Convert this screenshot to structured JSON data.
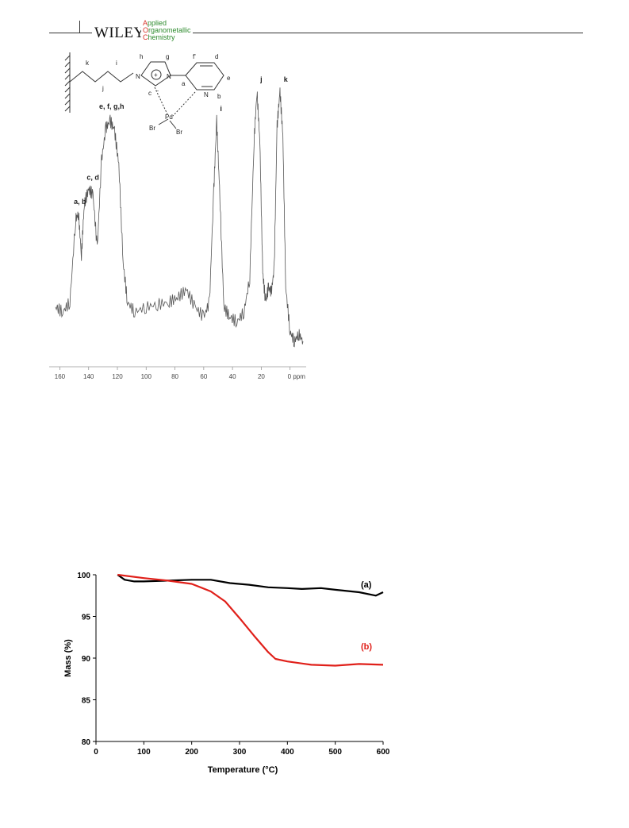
{
  "header": {
    "publisher": "WILEY",
    "journal_lines": [
      {
        "initial": "A",
        "rest": "pplied"
      },
      {
        "initial": "O",
        "rest": "rganometallic"
      },
      {
        "initial": "C",
        "rest": "hemistry"
      }
    ],
    "colors": {
      "journal_text": "#2e8b2e",
      "journal_initials": "#d9342b",
      "rule": "#333333"
    }
  },
  "figure_top": {
    "structure_labels": {
      "chain": [
        "k",
        "j",
        "i"
      ],
      "ring": [
        "h",
        "g",
        "f'",
        "d",
        "e",
        "a",
        "b",
        "c"
      ],
      "atoms": [
        "N",
        "N",
        "N",
        "Pd",
        "Br",
        "Br"
      ],
      "charges": [
        "+",
        "−"
      ]
    }
  },
  "chart_data": [
    {
      "type": "line",
      "title": "",
      "xlabel": "",
      "ylabel": "",
      "x_unit_label": "ppm",
      "x_reversed": true,
      "xlim": [
        160,
        -5
      ],
      "x_ticks": [
        "160",
        "140",
        "120",
        "100",
        "80",
        "60",
        "40",
        "20",
        "0 ppm"
      ],
      "series": [
        {
          "x": [
            163,
            158,
            153,
            149,
            147,
            145,
            143,
            140,
            137,
            134,
            131,
            128,
            125,
            122,
            119,
            116,
            113,
            108,
            100,
            92,
            84,
            78,
            72,
            66,
            60,
            56,
            53,
            51,
            49,
            46,
            42,
            37,
            32,
            28,
            25,
            23,
            21,
            19,
            17,
            15,
            13,
            11,
            9,
            7,
            5,
            3,
            0,
            -3,
            -6,
            -9
          ],
          "y": [
            0.12,
            0.1,
            0.14,
            0.48,
            0.5,
            0.33,
            0.54,
            0.6,
            0.58,
            0.36,
            0.72,
            0.85,
            0.88,
            0.84,
            0.7,
            0.3,
            0.14,
            0.1,
            0.12,
            0.13,
            0.14,
            0.16,
            0.19,
            0.12,
            0.08,
            0.14,
            0.6,
            0.88,
            0.6,
            0.12,
            0.08,
            0.06,
            0.1,
            0.24,
            0.8,
            1.0,
            0.8,
            0.26,
            0.14,
            0.2,
            0.18,
            0.28,
            0.86,
            1.0,
            0.82,
            0.2,
            0.02,
            -0.02,
            0.01,
            -0.02
          ]
        }
      ],
      "annotations": [
        {
          "text": "a, b",
          "x": 146,
          "y": 0.52
        },
        {
          "text": "c, d",
          "x": 137,
          "y": 0.62
        },
        {
          "text": "e, f, g,h",
          "x": 124,
          "y": 0.91
        },
        {
          "text": "i",
          "x": 48,
          "y": 0.9
        },
        {
          "text": "j",
          "x": 20,
          "y": 1.02
        },
        {
          "text": "k",
          "x": 3,
          "y": 1.02
        }
      ]
    },
    {
      "type": "line",
      "title": "",
      "xlabel": "Temperature (°C)",
      "ylabel": "Mass (%)",
      "xlim": [
        0,
        600
      ],
      "ylim": [
        80,
        100
      ],
      "x_ticks": [
        0,
        100,
        200,
        300,
        400,
        500,
        600
      ],
      "y_ticks": [
        80,
        85,
        90,
        95,
        100
      ],
      "grid": false,
      "series": [
        {
          "name": "(a)",
          "color": "#000000",
          "x": [
            45,
            60,
            80,
            100,
            150,
            200,
            240,
            280,
            320,
            360,
            400,
            430,
            470,
            500,
            550,
            585,
            600
          ],
          "y": [
            100,
            99.4,
            99.2,
            99.2,
            99.3,
            99.4,
            99.4,
            99.0,
            98.8,
            98.5,
            98.4,
            98.3,
            98.4,
            98.2,
            97.9,
            97.5,
            97.9
          ]
        },
        {
          "name": "(b)",
          "color": "#e0201a",
          "x": [
            45,
            100,
            150,
            200,
            240,
            270,
            300,
            330,
            360,
            375,
            400,
            450,
            500,
            550,
            600
          ],
          "y": [
            100,
            99.6,
            99.3,
            98.9,
            98.0,
            96.8,
            94.8,
            92.7,
            90.7,
            89.9,
            89.6,
            89.2,
            89.1,
            89.3,
            89.2
          ]
        }
      ]
    }
  ]
}
